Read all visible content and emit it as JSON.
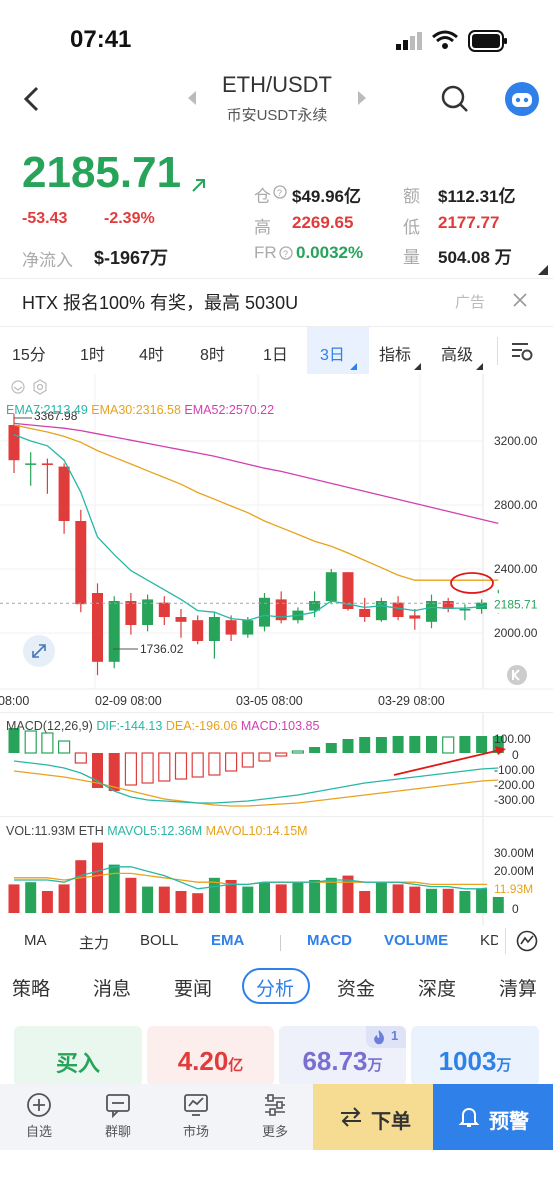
{
  "status": {
    "time": "07:41"
  },
  "header": {
    "pair": "ETH/USDT",
    "subtitle": "币安USDT永续"
  },
  "ticker": {
    "price": "2185.71",
    "change": "-53.43",
    "change_pct": "-2.39%",
    "netflow_label": "净流入",
    "netflow_value": "$-1967万",
    "oi_label": "仓",
    "oi_value": "$49.96亿",
    "amount_label": "额",
    "amount_value": "$112.31亿",
    "high_label": "高",
    "high_value": "2269.65",
    "low_label": "低",
    "low_value": "2177.77",
    "fr_label": "FR",
    "fr_value": "0.0032%",
    "vol_label": "量",
    "vol_value": "504.08 万"
  },
  "banner": {
    "text": "HTX 报名100% 有奖，最高 5030U",
    "tag": "广告"
  },
  "intervals": [
    "15分",
    "1时",
    "4时",
    "8时",
    "1日",
    "3日",
    "指标",
    "高级"
  ],
  "active_interval": "3日",
  "main_chart": {
    "ema_legend": {
      "ema7": "EMA7:2113.49",
      "ema30": "EMA30:2316.58",
      "ema52": "EMA52:2570.22"
    },
    "y_ticks": [
      "3200.00",
      "2800.00",
      "2400.00",
      "2000.00"
    ],
    "last_price_tag": "2185.71",
    "high_marker": "3367.98",
    "low_marker": "1736.02",
    "x_ticks": [
      "08:00",
      "02-09 08:00",
      "03-05 08:00",
      "03-29 08:00"
    ]
  },
  "macd": {
    "title": "MACD(12,26,9)",
    "dif": "DIF:-144.13",
    "dea": "DEA:-196.06",
    "macd": "MACD:103.85",
    "y_ticks": [
      "100.00",
      "0",
      "-100.00",
      "-200.00",
      "-300.00"
    ]
  },
  "volume": {
    "vol": "VOL:11.93M ETH",
    "mavol5": "MAVOL5:12.36M",
    "mavol10": "MAVOL10:14.15M",
    "y_ticks": [
      "30.00M",
      "20.00M",
      "0"
    ],
    "last_tag": "11.93M"
  },
  "indicator_tabs": [
    "MA",
    "主力",
    "BOLL",
    "EMA",
    "MACD",
    "VOLUME",
    "KD"
  ],
  "section_tabs": [
    "策略",
    "消息",
    "要闻",
    "分析",
    "资金",
    "深度",
    "清算"
  ],
  "cards": [
    {
      "label": "买入"
    },
    {
      "value": "4.20",
      "unit": "亿"
    },
    {
      "value": "68.73",
      "unit": "万",
      "badge": "1"
    },
    {
      "value": "1003",
      "unit": "万"
    }
  ],
  "bottom_nav": [
    "自选",
    "群聊",
    "市场",
    "更多"
  ],
  "order_label": "下单",
  "alert_label": "预警",
  "colors": {
    "up": "#27a35a",
    "down": "#e03c3c",
    "accent": "#2f80e8"
  }
}
